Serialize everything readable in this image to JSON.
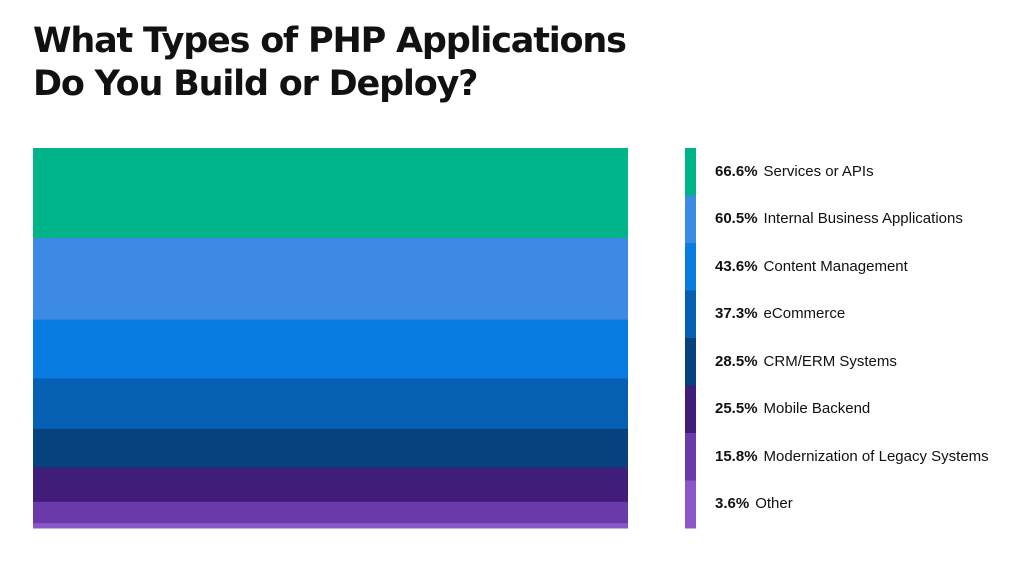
{
  "chart_data": {
    "type": "bar",
    "title": [
      "What Types of PHP Applications",
      "Do You Build or Deploy?"
    ],
    "unit": "%",
    "series": [
      {
        "name": "Services or APIs",
        "value": 66.6,
        "label": "66.6%",
        "color": "#00b48a"
      },
      {
        "name": "Internal Business Applications",
        "value": 60.5,
        "label": "60.5%",
        "color": "#3d8ae4"
      },
      {
        "name": "Content Management",
        "value": 43.6,
        "label": "43.6%",
        "color": "#087ce0"
      },
      {
        "name": "eCommerce",
        "value": 37.3,
        "label": "37.3%",
        "color": "#0560b4"
      },
      {
        "name": "CRM/ERM Systems",
        "value": 28.5,
        "label": "28.5%",
        "color": "#06437e"
      },
      {
        "name": "Mobile Backend",
        "value": 25.5,
        "label": "25.5%",
        "color": "#3f1d78"
      },
      {
        "name": "Modernization of Legacy Systems",
        "value": 15.8,
        "label": "15.8%",
        "color": "#6a3aab"
      },
      {
        "name": "Other",
        "value": 3.6,
        "label": "3.6%",
        "color": "#8b57c8"
      }
    ]
  }
}
